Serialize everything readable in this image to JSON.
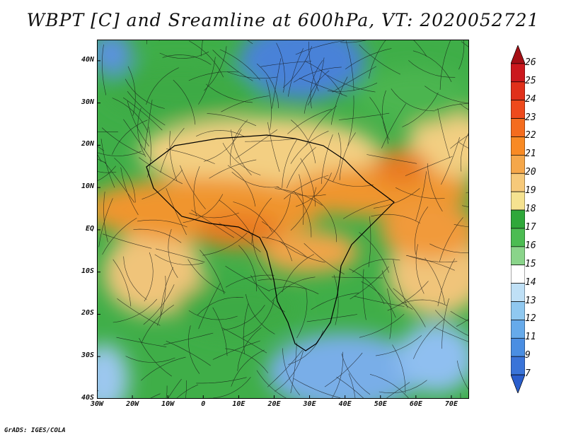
{
  "title": "WBPT [C] and Sreamline at 600hPa, VT: 2020052721",
  "footer": "GrADS: IGES/COLA",
  "lat_labels": [
    "40N",
    "30N",
    "20N",
    "10N",
    "EQ",
    "10S",
    "20S",
    "30S",
    "40S"
  ],
  "lon_labels": [
    "30W",
    "20W",
    "10W",
    "0",
    "10E",
    "20E",
    "30E",
    "40E",
    "50E",
    "60E",
    "70E"
  ],
  "colorbar": {
    "levels": [
      "26",
      "25",
      "24",
      "23",
      "22",
      "21",
      "20",
      "19",
      "18",
      "17",
      "16",
      "15",
      "14",
      "13",
      "12",
      "11",
      "9",
      "7"
    ],
    "colors": [
      "#a50f15",
      "#cb181d",
      "#e0301a",
      "#ee4a1c",
      "#f46c1e",
      "#f88a24",
      "#f5a74a",
      "#f6c97a",
      "#f5e290",
      "#2fa83a",
      "#4cbc52",
      "#8ad48a",
      "#ffffff",
      "#bfe0f6",
      "#8fc8f0",
      "#66aaea",
      "#4a8ee2",
      "#3a74d8",
      "#2a5ecc"
    ]
  },
  "map": {
    "lon_range": [
      -30,
      75
    ],
    "lat_range": [
      -40,
      45
    ]
  }
}
